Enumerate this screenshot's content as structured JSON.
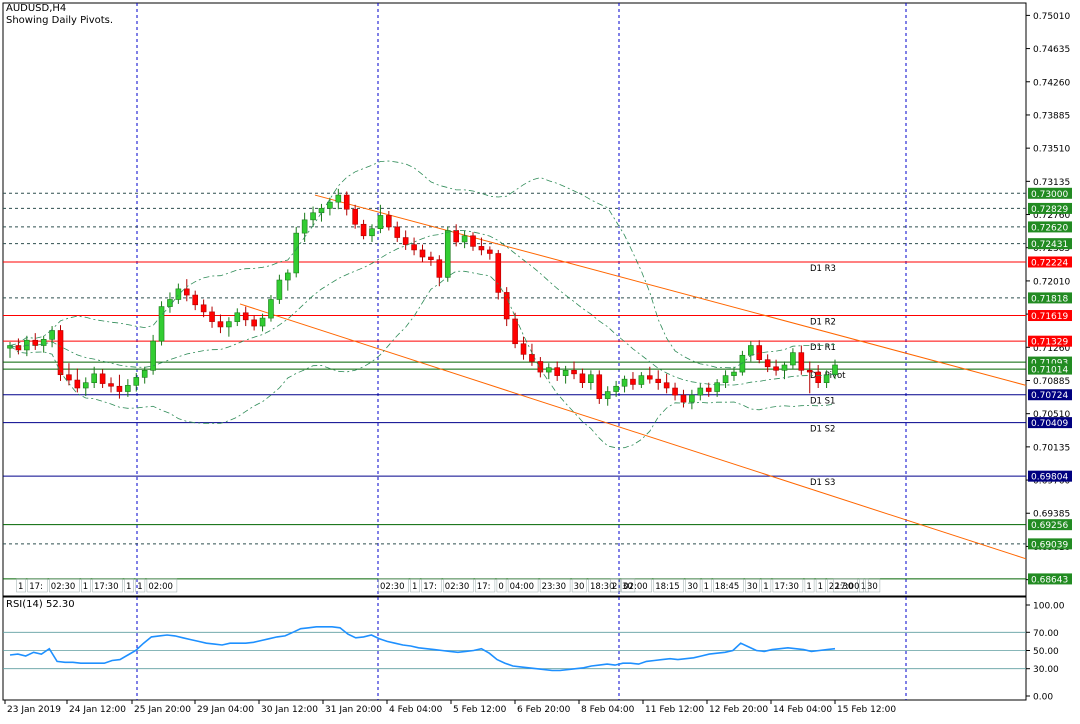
{
  "header": {
    "symbol": "AUDUSD,H4",
    "subtitle": "Showing Daily Pivots."
  },
  "rsi_label": "RSI(14) 52.30",
  "colors": {
    "bull": "#32cd32",
    "bear": "#ff0000",
    "pivot_line": "#ff0000",
    "channel": "#ff6600",
    "bands": "#2e8b57",
    "grid": "#0000cd",
    "rsi": "#1e90ff",
    "tag_red": "#ff0000",
    "tag_green": "#228b22"
  },
  "chart_data": {
    "type": "candlestick",
    "price_axis": {
      "ticks": [
        0.7501,
        0.74635,
        0.7426,
        0.73885,
        0.7351,
        0.73135,
        0.7276,
        0.72385,
        0.7201,
        0.71635,
        0.7126,
        0.70885,
        0.7051,
        0.70135,
        0.6976,
        0.69385,
        0.6901,
        0.68635
      ],
      "labels": [
        "0.75010",
        "0.74635",
        "0.74260",
        "0.73885",
        "0.73510",
        "0.73135",
        "0.72760",
        "0.72385",
        "0.72010",
        "0.71635",
        "0.71260",
        "0.70885",
        "0.70510",
        "0.70135",
        "0.69760",
        "0.69385",
        "0.69010",
        "0.68635"
      ]
    },
    "time_axis": [
      "23 Jan 2019",
      "24 Jan 12:00",
      "25 Jan 20:00",
      "29 Jan 04:00",
      "30 Jan 12:00",
      "31 Jan 20:00",
      "4 Feb 04:00",
      "5 Feb 12:00",
      "6 Feb 20:00",
      "8 Feb 04:00",
      "11 Feb 12:00",
      "12 Feb 20:00",
      "14 Feb 04:00",
      "15 Feb 12:00"
    ],
    "pivots": [
      {
        "name": "D1 R3",
        "value": 0.72224
      },
      {
        "name": "D1 R2",
        "value": 0.71619
      },
      {
        "name": "D1 R1",
        "value": 0.71329
      },
      {
        "name": "D1 Pivot",
        "value": 0.71014
      },
      {
        "name": "D1 S1",
        "value": 0.70724
      },
      {
        "name": "D1 S2",
        "value": 0.70409
      },
      {
        "name": "D1 S3",
        "value": 0.69804
      }
    ],
    "price_tags": [
      {
        "text": "0.73000",
        "value": 0.73,
        "kind": "green"
      },
      {
        "text": "0.72829",
        "value": 0.72829,
        "kind": "green"
      },
      {
        "text": "0.72620",
        "value": 0.7262,
        "kind": "green"
      },
      {
        "text": "0.72431",
        "value": 0.72431,
        "kind": "green"
      },
      {
        "text": "0.72224",
        "value": 0.72224,
        "kind": "red"
      },
      {
        "text": "0.71818",
        "value": 0.71818,
        "kind": "green"
      },
      {
        "text": "0.71619",
        "value": 0.71619,
        "kind": "red"
      },
      {
        "text": "0.71329",
        "value": 0.71329,
        "kind": "red"
      },
      {
        "text": "0.71093",
        "value": 0.71093,
        "kind": "green"
      },
      {
        "text": "0.71014",
        "value": 0.71014,
        "kind": "green"
      },
      {
        "text": "0.70724",
        "value": 0.70724,
        "kind": "blue"
      },
      {
        "text": "0.70409",
        "value": 0.70409,
        "kind": "blue"
      },
      {
        "text": "0.69804",
        "value": 0.69804,
        "kind": "blue"
      },
      {
        "text": "0.69256",
        "value": 0.69256,
        "kind": "green"
      },
      {
        "text": "0.69039",
        "value": 0.69039,
        "kind": "green"
      },
      {
        "text": "0.68643",
        "value": 0.68643,
        "kind": "green"
      }
    ],
    "dotted_levels": [
      0.73,
      0.72829,
      0.7262,
      0.72431,
      0.71818,
      0.69039
    ],
    "solid_green_levels": [
      0.71093,
      0.69256,
      0.68643
    ],
    "candles": [
      [
        0.7125,
        0.7132,
        0.7114,
        0.7128
      ],
      [
        0.7128,
        0.7136,
        0.7118,
        0.7123
      ],
      [
        0.7123,
        0.7139,
        0.7116,
        0.7134
      ],
      [
        0.7134,
        0.7142,
        0.7123,
        0.7128
      ],
      [
        0.7128,
        0.7139,
        0.712,
        0.7135
      ],
      [
        0.7135,
        0.715,
        0.7126,
        0.7145
      ],
      [
        0.7145,
        0.7151,
        0.7088,
        0.7095
      ],
      [
        0.7095,
        0.7108,
        0.7083,
        0.7089
      ],
      [
        0.7089,
        0.7102,
        0.7075,
        0.708
      ],
      [
        0.708,
        0.7092,
        0.7071,
        0.7086
      ],
      [
        0.7086,
        0.7104,
        0.708,
        0.7096
      ],
      [
        0.7096,
        0.7101,
        0.708,
        0.7085
      ],
      [
        0.7085,
        0.7092,
        0.7075,
        0.7082
      ],
      [
        0.7082,
        0.7095,
        0.7068,
        0.7076
      ],
      [
        0.7076,
        0.709,
        0.707,
        0.7083
      ],
      [
        0.7083,
        0.7097,
        0.7076,
        0.7092
      ],
      [
        0.7092,
        0.7104,
        0.7085,
        0.71
      ],
      [
        0.71,
        0.714,
        0.7095,
        0.7133
      ],
      [
        0.7133,
        0.7178,
        0.7128,
        0.7172
      ],
      [
        0.7172,
        0.7188,
        0.7165,
        0.718
      ],
      [
        0.718,
        0.7198,
        0.7175,
        0.7192
      ],
      [
        0.7192,
        0.7203,
        0.7178,
        0.7185
      ],
      [
        0.7185,
        0.719,
        0.7168,
        0.7174
      ],
      [
        0.7174,
        0.718,
        0.716,
        0.7166
      ],
      [
        0.7166,
        0.7172,
        0.7148,
        0.7155
      ],
      [
        0.7155,
        0.7163,
        0.7142,
        0.7149
      ],
      [
        0.7149,
        0.716,
        0.7138,
        0.7155
      ],
      [
        0.7155,
        0.717,
        0.715,
        0.7165
      ],
      [
        0.7165,
        0.7172,
        0.715,
        0.7157
      ],
      [
        0.7157,
        0.7162,
        0.7145,
        0.715
      ],
      [
        0.715,
        0.7164,
        0.7144,
        0.7159
      ],
      [
        0.7159,
        0.7185,
        0.7155,
        0.718
      ],
      [
        0.718,
        0.7208,
        0.7175,
        0.7202
      ],
      [
        0.7202,
        0.7214,
        0.719,
        0.721
      ],
      [
        0.721,
        0.7262,
        0.7205,
        0.7255
      ],
      [
        0.7255,
        0.7278,
        0.7245,
        0.727
      ],
      [
        0.727,
        0.7285,
        0.7262,
        0.7278
      ],
      [
        0.7278,
        0.7288,
        0.7268,
        0.7283
      ],
      [
        0.7283,
        0.7295,
        0.7275,
        0.729
      ],
      [
        0.729,
        0.7305,
        0.7282,
        0.7298
      ],
      [
        0.7298,
        0.7302,
        0.7275,
        0.7282
      ],
      [
        0.7282,
        0.7287,
        0.726,
        0.7265
      ],
      [
        0.7265,
        0.727,
        0.7248,
        0.7252
      ],
      [
        0.7252,
        0.7265,
        0.7245,
        0.726
      ],
      [
        0.726,
        0.7287,
        0.7255,
        0.7275
      ],
      [
        0.7275,
        0.728,
        0.7258,
        0.7262
      ],
      [
        0.7262,
        0.7268,
        0.7245,
        0.725
      ],
      [
        0.725,
        0.7258,
        0.7236,
        0.7242
      ],
      [
        0.7242,
        0.725,
        0.723,
        0.7236
      ],
      [
        0.7236,
        0.7242,
        0.7222,
        0.7228
      ],
      [
        0.7228,
        0.7234,
        0.7218,
        0.7225
      ],
      [
        0.7225,
        0.723,
        0.7195,
        0.7205
      ],
      [
        0.7205,
        0.7262,
        0.72,
        0.7258
      ],
      [
        0.7258,
        0.7265,
        0.724,
        0.7245
      ],
      [
        0.7245,
        0.7258,
        0.7238,
        0.7252
      ],
      [
        0.7252,
        0.7256,
        0.7235,
        0.724
      ],
      [
        0.724,
        0.725,
        0.723,
        0.7236
      ],
      [
        0.7236,
        0.724,
        0.7225,
        0.7232
      ],
      [
        0.7232,
        0.7236,
        0.718,
        0.7188
      ],
      [
        0.7188,
        0.7194,
        0.715,
        0.7158
      ],
      [
        0.7158,
        0.7165,
        0.7125,
        0.713
      ],
      [
        0.713,
        0.7138,
        0.7112,
        0.7118
      ],
      [
        0.7118,
        0.713,
        0.7105,
        0.711
      ],
      [
        0.711,
        0.7115,
        0.7092,
        0.7098
      ],
      [
        0.7098,
        0.7108,
        0.709,
        0.7103
      ],
      [
        0.7103,
        0.711,
        0.7088,
        0.7094
      ],
      [
        0.7094,
        0.7105,
        0.7085,
        0.71
      ],
      [
        0.71,
        0.711,
        0.709,
        0.7096
      ],
      [
        0.7096,
        0.7102,
        0.708,
        0.7086
      ],
      [
        0.7086,
        0.71,
        0.7078,
        0.7095
      ],
      [
        0.7095,
        0.71,
        0.7062,
        0.7068
      ],
      [
        0.7068,
        0.7082,
        0.706,
        0.7076
      ],
      [
        0.7076,
        0.7088,
        0.707,
        0.7082
      ],
      [
        0.7082,
        0.7094,
        0.7075,
        0.709
      ],
      [
        0.709,
        0.7098,
        0.7078,
        0.7084
      ],
      [
        0.7084,
        0.7098,
        0.708,
        0.7094
      ],
      [
        0.7094,
        0.7104,
        0.7085,
        0.709
      ],
      [
        0.709,
        0.71,
        0.7078,
        0.7086
      ],
      [
        0.7086,
        0.7096,
        0.7074,
        0.708
      ],
      [
        0.708,
        0.7086,
        0.7066,
        0.7072
      ],
      [
        0.7072,
        0.7078,
        0.7058,
        0.7064
      ],
      [
        0.7064,
        0.7078,
        0.7056,
        0.7072
      ],
      [
        0.7072,
        0.7085,
        0.7066,
        0.708
      ],
      [
        0.708,
        0.7086,
        0.707,
        0.7076
      ],
      [
        0.7076,
        0.709,
        0.707,
        0.7086
      ],
      [
        0.7086,
        0.71,
        0.708,
        0.7094
      ],
      [
        0.7094,
        0.7104,
        0.7088,
        0.7098
      ],
      [
        0.7098,
        0.7122,
        0.7094,
        0.7117
      ],
      [
        0.7117,
        0.7133,
        0.711,
        0.7128
      ],
      [
        0.7128,
        0.7134,
        0.7108,
        0.7112
      ],
      [
        0.7112,
        0.7118,
        0.7098,
        0.7104
      ],
      [
        0.7104,
        0.7112,
        0.7094,
        0.71
      ],
      [
        0.71,
        0.711,
        0.709,
        0.7106
      ],
      [
        0.7106,
        0.7125,
        0.7102,
        0.712
      ],
      [
        0.712,
        0.7128,
        0.7095,
        0.71
      ],
      [
        0.71,
        0.711,
        0.7074,
        0.7098
      ],
      [
        0.7098,
        0.7106,
        0.708,
        0.7086
      ],
      [
        0.7086,
        0.71,
        0.708,
        0.7095
      ],
      [
        0.7095,
        0.7112,
        0.709,
        0.7106
      ]
    ],
    "channel_upper": {
      "p1": [
        0.7298,
        "30 Jan 12:00+"
      ],
      "p2": [
        0.70885,
        "right-edge"
      ]
    },
    "rsi": {
      "name": "RSI(14)",
      "current": 52.3,
      "levels": [
        70,
        50,
        30
      ],
      "axis_labels": [
        "100.00",
        "70.00",
        "50.00",
        "30.00",
        "0.00"
      ],
      "axis_values": [
        100,
        70,
        50,
        30,
        0
      ],
      "values": [
        45,
        46,
        44,
        48,
        46,
        52,
        38,
        37,
        37,
        36,
        36,
        36,
        36,
        39,
        40,
        45,
        50,
        58,
        65,
        66,
        67,
        66,
        64,
        62,
        60,
        58,
        57,
        56,
        58,
        58,
        58,
        59,
        61,
        63,
        65,
        66,
        70,
        74,
        75,
        76,
        76,
        76,
        75,
        68,
        64,
        65,
        67,
        63,
        60,
        58,
        56,
        55,
        53,
        52,
        51,
        50,
        49,
        48,
        49,
        50,
        52,
        47,
        40,
        36,
        33,
        32,
        31,
        30,
        29,
        28,
        28,
        29,
        30,
        31,
        33,
        34,
        35,
        34,
        36,
        36,
        35,
        38,
        39,
        40,
        41,
        40,
        41,
        42,
        44,
        46,
        47,
        48,
        50,
        58,
        54,
        50,
        49,
        51,
        52,
        53,
        52,
        51,
        49,
        50,
        51,
        52
      ]
    },
    "time_markers": [
      "1",
      "17:",
      "02:30",
      "1",
      "17:30",
      "1",
      "1",
      "02:00",
      "02:30",
      "1",
      "17:",
      "02:30",
      "17:",
      "0",
      "04:00",
      "23:30",
      "30",
      "18:30",
      "30",
      "2",
      "02:00",
      "18:15",
      "30",
      "1",
      "18:45",
      "30",
      "1",
      "17:30",
      "1",
      "1",
      "22:30",
      "1",
      "17:00",
      "30"
    ]
  }
}
